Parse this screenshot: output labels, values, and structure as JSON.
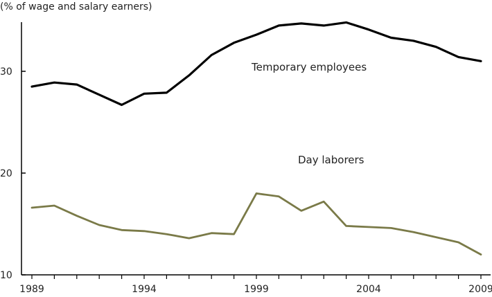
{
  "chart_data": {
    "type": "line",
    "title": "",
    "ylabel": "(% of wage and salary earners)",
    "xlabel": "",
    "x": [
      1989,
      1990,
      1991,
      1992,
      1993,
      1994,
      1995,
      1996,
      1997,
      1998,
      1999,
      2000,
      2001,
      2002,
      2003,
      2004,
      2005,
      2006,
      2007,
      2008,
      2009
    ],
    "xticks": [
      "1989",
      "1994",
      "1999",
      "2004",
      "2009"
    ],
    "yticks": [
      "10",
      "20",
      "30"
    ],
    "xlim": [
      1989,
      2009.5
    ],
    "ylim": [
      10,
      35
    ],
    "grid": false,
    "series": [
      {
        "name": "Temporary employees",
        "color": "#000000",
        "values": [
          28.5,
          28.9,
          28.7,
          27.7,
          26.7,
          27.8,
          27.9,
          29.6,
          31.6,
          32.8,
          33.6,
          34.5,
          34.7,
          34.5,
          34.8,
          34.1,
          33.3,
          33.0,
          32.4,
          31.4,
          31.0
        ]
      },
      {
        "name": "Day laborers",
        "color": "#7a7a48",
        "values": [
          16.6,
          16.8,
          15.8,
          14.9,
          14.4,
          14.3,
          14.0,
          13.6,
          14.1,
          14.0,
          18.0,
          17.7,
          16.3,
          17.2,
          14.8,
          14.7,
          14.6,
          14.2,
          13.7,
          13.2,
          12.0
        ]
      }
    ]
  }
}
